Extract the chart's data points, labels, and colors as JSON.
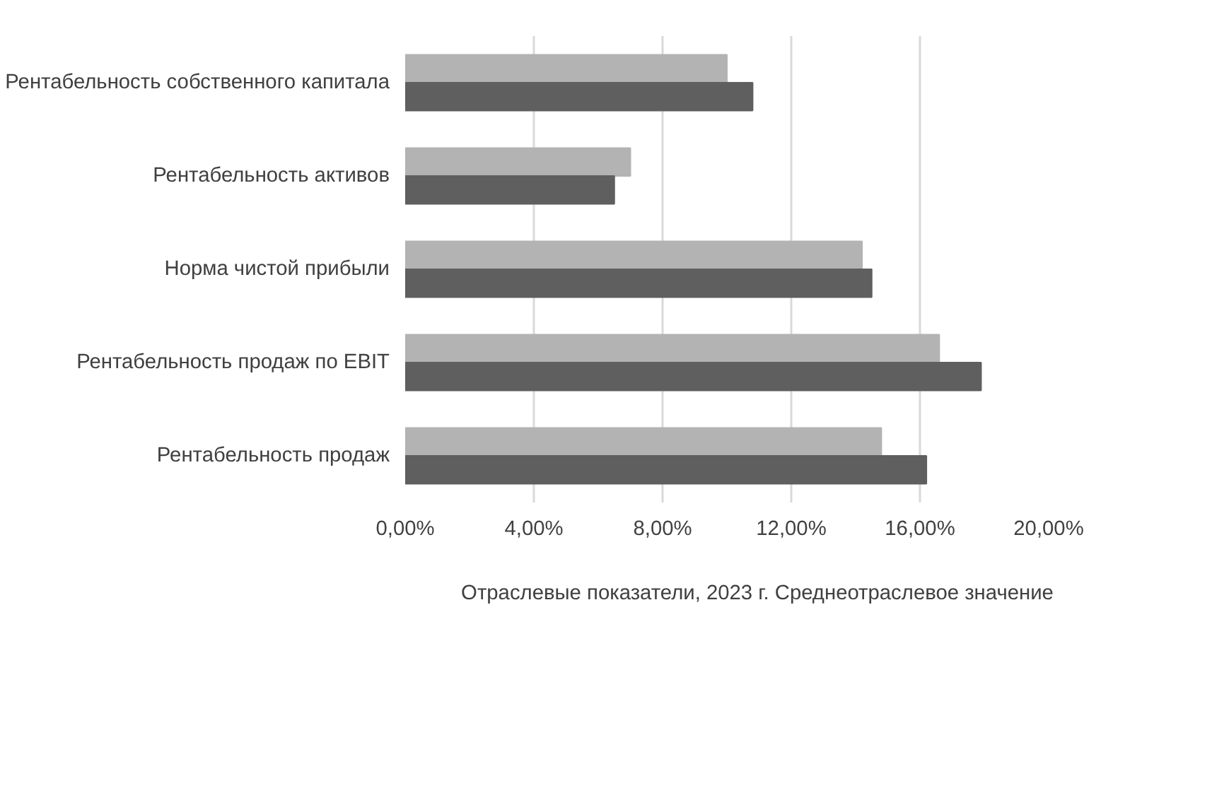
{
  "chart_data": {
    "type": "bar",
    "orientation": "horizontal",
    "categories": [
      "Рентабельность собственного капитала",
      "Рентабельность активов",
      "Норма чистой прибыли",
      "Рентабельность продаж по EBIT",
      "Рентабельность продаж"
    ],
    "series": [
      {
        "name": "Отраслевые показатели, 2023 г. Среднеотраслевое значение",
        "color": "#b3b3b3",
        "values": [
          10.0,
          7.0,
          14.2,
          16.6,
          14.8
        ]
      },
      {
        "color": "#5f5f5f",
        "values": [
          10.8,
          6.5,
          14.5,
          17.9,
          16.2
        ]
      }
    ],
    "xlim": [
      0,
      20
    ],
    "xticks": [
      {
        "value": 0,
        "label": "0,00%"
      },
      {
        "value": 4,
        "label": "4,00%"
      },
      {
        "value": 8,
        "label": "8,00%"
      },
      {
        "value": 12,
        "label": "12,00%"
      },
      {
        "value": 16,
        "label": "16,00%"
      },
      {
        "value": 20,
        "label": "20,00%"
      }
    ],
    "grid": "x",
    "legend": "bottom"
  }
}
